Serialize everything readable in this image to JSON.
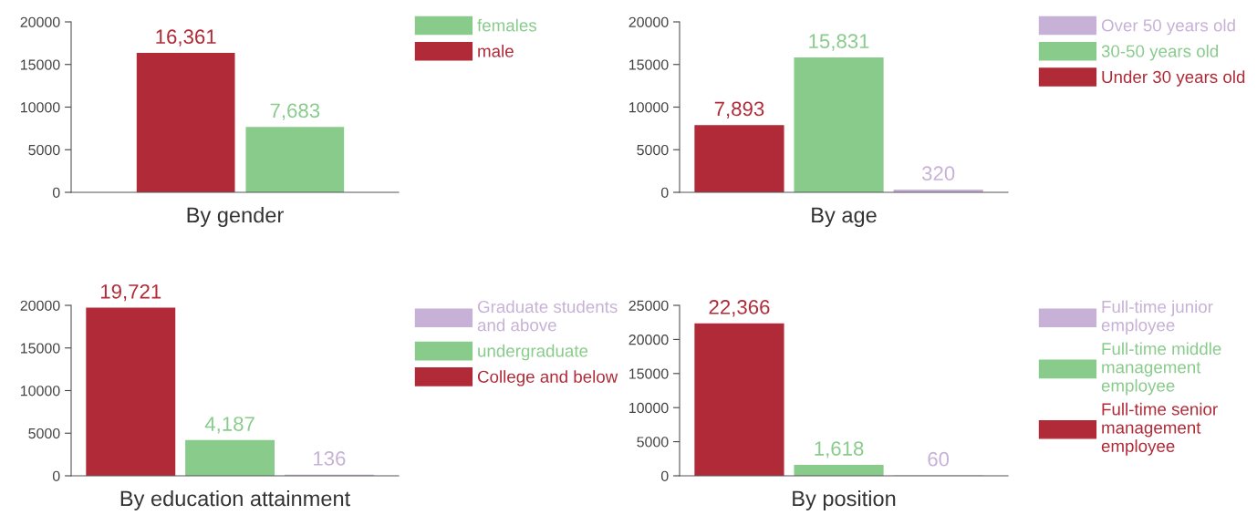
{
  "chart_data": [
    {
      "type": "bar",
      "xlabel": "By gender",
      "categories": [
        null,
        null
      ],
      "ylim": [
        0,
        20000
      ],
      "yticks": [
        0,
        5000,
        10000,
        15000,
        20000
      ],
      "legend": "right",
      "grid": false,
      "series": [
        {
          "name": "male",
          "color": "#b02a37",
          "values": [
            16361,
            null
          ],
          "value_labels": [
            "16,361",
            null
          ]
        },
        {
          "name": "females",
          "color": "#88cb8b",
          "values": [
            null,
            7683
          ],
          "value_labels": [
            null,
            "7,683"
          ]
        }
      ]
    },
    {
      "type": "bar",
      "xlabel": "By age",
      "categories": [
        null,
        null,
        null
      ],
      "ylim": [
        0,
        20000
      ],
      "yticks": [
        0,
        5000,
        10000,
        15000,
        20000
      ],
      "legend": "right",
      "grid": false,
      "series": [
        {
          "name": "Under 30 years old",
          "color": "#b02a37",
          "values": [
            7893,
            null,
            null
          ],
          "value_labels": [
            "7,893",
            null,
            null
          ]
        },
        {
          "name": "30-50 years old",
          "color": "#88cb8b",
          "values": [
            null,
            15831,
            null
          ],
          "value_labels": [
            null,
            "15,831",
            null
          ]
        },
        {
          "name": "Over 50 years old",
          "color": "#c8b1d6",
          "values": [
            null,
            null,
            320
          ],
          "value_labels": [
            null,
            null,
            "320"
          ]
        }
      ]
    },
    {
      "type": "bar",
      "xlabel": "By education attainment",
      "categories": [
        null,
        null,
        null
      ],
      "ylim": [
        0,
        20000
      ],
      "yticks": [
        0,
        5000,
        10000,
        15000,
        20000
      ],
      "legend": "right",
      "grid": false,
      "series": [
        {
          "name": "College and below",
          "color": "#b02a37",
          "values": [
            19721,
            null,
            null
          ],
          "value_labels": [
            "19,721",
            null,
            null
          ]
        },
        {
          "name": "undergraduate",
          "color": "#88cb8b",
          "values": [
            null,
            4187,
            null
          ],
          "value_labels": [
            null,
            "4,187",
            null
          ]
        },
        {
          "name": "Graduate students\nand above",
          "color": "#c8b1d6",
          "values": [
            null,
            null,
            136
          ],
          "value_labels": [
            null,
            null,
            "136"
          ]
        }
      ]
    },
    {
      "type": "bar",
      "xlabel": "By position",
      "categories": [
        null,
        null,
        null
      ],
      "ylim": [
        0,
        25000
      ],
      "yticks": [
        0,
        5000,
        10000,
        15000,
        20000,
        25000
      ],
      "legend": "right",
      "grid": false,
      "series": [
        {
          "name": "Full-time senior\nmanagement\nemployee",
          "color": "#b02a37",
          "values": [
            22366,
            null,
            null
          ],
          "value_labels": [
            "22,366",
            null,
            null
          ]
        },
        {
          "name": "Full-time middle\nmanagement\nemployee",
          "color": "#88cb8b",
          "values": [
            null,
            1618,
            null
          ],
          "value_labels": [
            null,
            "1,618",
            null
          ]
        },
        {
          "name": "Full-time junior\nemployee",
          "color": "#c8b1d6",
          "values": [
            null,
            null,
            60
          ],
          "value_labels": [
            null,
            null,
            "60"
          ]
        }
      ]
    }
  ]
}
